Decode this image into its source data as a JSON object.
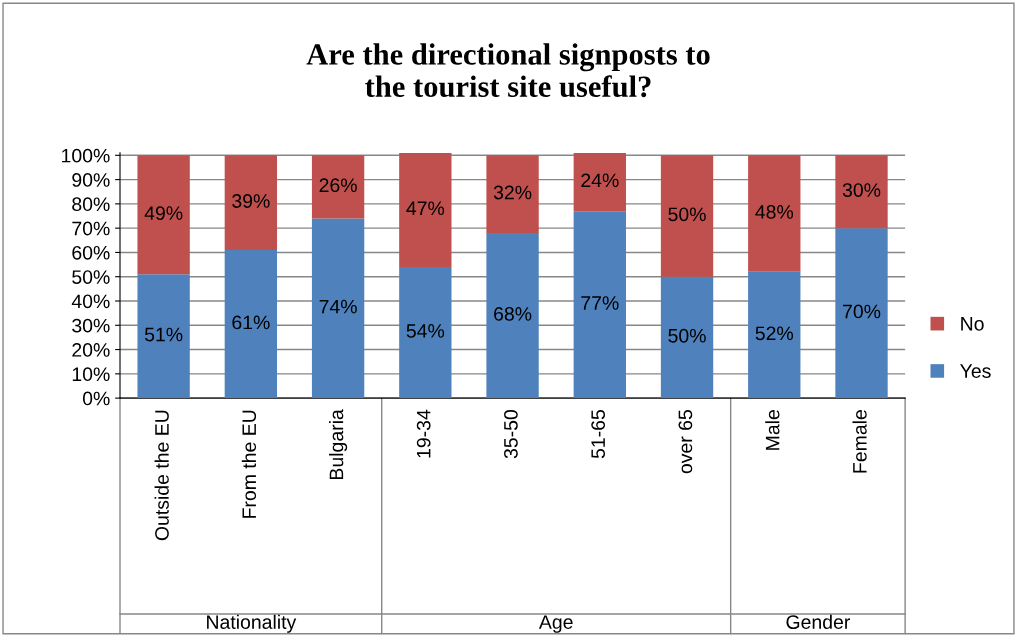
{
  "chart_data": {
    "type": "bar",
    "stacked": true,
    "title": "Are the directional signposts to\nthe tourist site useful?",
    "categories": [
      "Outside the EU",
      "From the EU",
      "Bulgaria",
      "19-34",
      "35-50",
      "51-65",
      "over 65",
      "Male",
      "Female"
    ],
    "series": [
      {
        "name": "Yes",
        "color": "#4f81bd",
        "values": [
          51,
          61,
          74,
          54,
          68,
          77,
          50,
          52,
          70
        ],
        "value_labels": [
          "51%",
          "61%",
          "74%",
          "54%",
          "68%",
          "77%",
          "50%",
          "52%",
          "70%"
        ]
      },
      {
        "name": "No",
        "color": "#c0504d",
        "values": [
          49,
          39,
          26,
          47,
          32,
          24,
          50,
          48,
          30
        ],
        "value_labels": [
          "49%",
          "39%",
          "26%",
          "47%",
          "32%",
          "24%",
          "50%",
          "48%",
          "30%"
        ]
      }
    ],
    "ylim": [
      0,
      101
    ],
    "yticks": [
      {
        "value": 0,
        "label": "0%"
      },
      {
        "value": 10,
        "label": "10%"
      },
      {
        "value": 20,
        "label": "20%"
      },
      {
        "value": 30,
        "label": "30%"
      },
      {
        "value": 40,
        "label": "40%"
      },
      {
        "value": 50,
        "label": "50%"
      },
      {
        "value": 60,
        "label": "60%"
      },
      {
        "value": 70,
        "label": "70%"
      },
      {
        "value": 80,
        "label": "80%"
      },
      {
        "value": 90,
        "label": "90%"
      },
      {
        "value": 100,
        "label": "100%"
      }
    ],
    "grid": "y",
    "legend": "right",
    "annotations": [
      "Nationality",
      "Age",
      "Gender"
    ]
  }
}
